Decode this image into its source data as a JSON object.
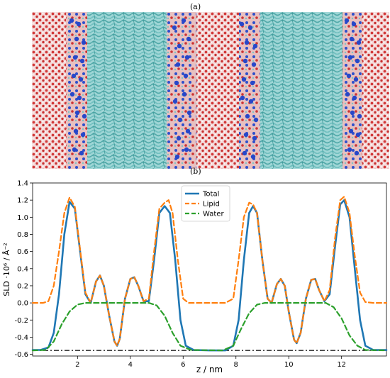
{
  "figure": {
    "panel_a_label": "(a)",
    "panel_b_label": "(b)"
  },
  "simulation_image": {
    "description_icon": "molecular-dynamics-snapshot",
    "colors": {
      "water": "#cc3333",
      "lipid_tails": "#6fc0c0",
      "headgroup": "#3355cc",
      "background": "#ffffff"
    }
  },
  "chart_data": {
    "type": "line",
    "xlabel": "z / nm",
    "ylabel": "SLD ·10⁶ / Å⁻²",
    "xlim": [
      0.3,
      13.7
    ],
    "ylim": [
      -0.62,
      1.4
    ],
    "xticks": [
      2,
      4,
      6,
      8,
      10,
      12
    ],
    "yticks": [
      -0.6,
      -0.4,
      -0.2,
      0.0,
      0.2,
      0.4,
      0.6,
      0.8,
      1.0,
      1.2,
      1.4
    ],
    "ytick_labels": [
      "-0.6",
      "-0.4",
      "-0.2",
      "0.0",
      "0.2",
      "0.4",
      "0.6",
      "0.8",
      "1.0",
      "1.2",
      "1.4"
    ],
    "xtick_labels": [
      "2",
      "4",
      "6",
      "8",
      "10",
      "12"
    ],
    "legend_position": "top-center",
    "reference_line": {
      "y": -0.555,
      "style": "dash-dot",
      "color": "#000000"
    },
    "series": [
      {
        "name": "Total",
        "color": "#1f77b4",
        "style": "solid",
        "points": [
          [
            0.3,
            -0.55
          ],
          [
            0.6,
            -0.55
          ],
          [
            0.9,
            -0.52
          ],
          [
            1.1,
            -0.35
          ],
          [
            1.3,
            0.1
          ],
          [
            1.5,
            0.8
          ],
          [
            1.7,
            1.18
          ],
          [
            1.9,
            1.1
          ],
          [
            2.1,
            0.6
          ],
          [
            2.3,
            0.1
          ],
          [
            2.5,
            0.0
          ],
          [
            2.7,
            0.25
          ],
          [
            2.85,
            0.32
          ],
          [
            3.0,
            0.2
          ],
          [
            3.2,
            -0.15
          ],
          [
            3.4,
            -0.45
          ],
          [
            3.5,
            -0.5
          ],
          [
            3.6,
            -0.42
          ],
          [
            3.8,
            0.05
          ],
          [
            4.0,
            0.28
          ],
          [
            4.15,
            0.3
          ],
          [
            4.3,
            0.2
          ],
          [
            4.5,
            0.02
          ],
          [
            4.7,
            0.02
          ],
          [
            4.9,
            0.5
          ],
          [
            5.1,
            1.05
          ],
          [
            5.3,
            1.13
          ],
          [
            5.5,
            1.05
          ],
          [
            5.7,
            0.5
          ],
          [
            5.9,
            -0.2
          ],
          [
            6.1,
            -0.5
          ],
          [
            6.4,
            -0.55
          ],
          [
            7.0,
            -0.555
          ],
          [
            7.6,
            -0.555
          ],
          [
            7.9,
            -0.5
          ],
          [
            8.1,
            -0.2
          ],
          [
            8.3,
            0.5
          ],
          [
            8.5,
            1.05
          ],
          [
            8.65,
            1.13
          ],
          [
            8.8,
            1.05
          ],
          [
            9.0,
            0.5
          ],
          [
            9.2,
            0.05
          ],
          [
            9.35,
            0.0
          ],
          [
            9.55,
            0.22
          ],
          [
            9.7,
            0.28
          ],
          [
            9.85,
            0.2
          ],
          [
            10.0,
            -0.1
          ],
          [
            10.2,
            -0.43
          ],
          [
            10.3,
            -0.47
          ],
          [
            10.45,
            -0.35
          ],
          [
            10.65,
            0.05
          ],
          [
            10.85,
            0.27
          ],
          [
            11.0,
            0.28
          ],
          [
            11.15,
            0.15
          ],
          [
            11.35,
            0.02
          ],
          [
            11.55,
            0.1
          ],
          [
            11.75,
            0.65
          ],
          [
            11.95,
            1.15
          ],
          [
            12.1,
            1.2
          ],
          [
            12.3,
            1.0
          ],
          [
            12.5,
            0.4
          ],
          [
            12.7,
            -0.2
          ],
          [
            12.9,
            -0.5
          ],
          [
            13.2,
            -0.55
          ],
          [
            13.7,
            -0.55
          ]
        ]
      },
      {
        "name": "Lipid",
        "color": "#ff7f0e",
        "style": "dashed",
        "points": [
          [
            0.3,
            0.0
          ],
          [
            0.7,
            0.0
          ],
          [
            0.9,
            0.02
          ],
          [
            1.1,
            0.2
          ],
          [
            1.3,
            0.6
          ],
          [
            1.5,
            1.05
          ],
          [
            1.7,
            1.23
          ],
          [
            1.9,
            1.12
          ],
          [
            2.1,
            0.62
          ],
          [
            2.3,
            0.12
          ],
          [
            2.5,
            0.0
          ],
          [
            2.7,
            0.25
          ],
          [
            2.85,
            0.32
          ],
          [
            3.0,
            0.2
          ],
          [
            3.2,
            -0.15
          ],
          [
            3.4,
            -0.45
          ],
          [
            3.5,
            -0.5
          ],
          [
            3.6,
            -0.42
          ],
          [
            3.8,
            0.05
          ],
          [
            4.0,
            0.28
          ],
          [
            4.15,
            0.3
          ],
          [
            4.3,
            0.2
          ],
          [
            4.5,
            0.02
          ],
          [
            4.7,
            0.05
          ],
          [
            4.9,
            0.6
          ],
          [
            5.1,
            1.1
          ],
          [
            5.3,
            1.17
          ],
          [
            5.45,
            1.2
          ],
          [
            5.6,
            1.05
          ],
          [
            5.8,
            0.5
          ],
          [
            6.0,
            0.05
          ],
          [
            6.2,
            0.0
          ],
          [
            7.0,
            0.0
          ],
          [
            7.6,
            0.0
          ],
          [
            7.9,
            0.05
          ],
          [
            8.1,
            0.5
          ],
          [
            8.3,
            1.0
          ],
          [
            8.5,
            1.17
          ],
          [
            8.65,
            1.15
          ],
          [
            8.8,
            1.05
          ],
          [
            9.0,
            0.5
          ],
          [
            9.2,
            0.05
          ],
          [
            9.35,
            0.0
          ],
          [
            9.55,
            0.22
          ],
          [
            9.7,
            0.28
          ],
          [
            9.85,
            0.2
          ],
          [
            10.0,
            -0.1
          ],
          [
            10.2,
            -0.43
          ],
          [
            10.3,
            -0.47
          ],
          [
            10.45,
            -0.35
          ],
          [
            10.65,
            0.05
          ],
          [
            10.85,
            0.27
          ],
          [
            11.0,
            0.28
          ],
          [
            11.15,
            0.15
          ],
          [
            11.35,
            0.02
          ],
          [
            11.55,
            0.15
          ],
          [
            11.75,
            0.75
          ],
          [
            11.95,
            1.2
          ],
          [
            12.1,
            1.24
          ],
          [
            12.3,
            1.05
          ],
          [
            12.5,
            0.55
          ],
          [
            12.7,
            0.12
          ],
          [
            12.9,
            0.01
          ],
          [
            13.2,
            0.0
          ],
          [
            13.7,
            0.0
          ]
        ]
      },
      {
        "name": "Water",
        "color": "#2ca02c",
        "style": "dashed",
        "points": [
          [
            0.3,
            -0.555
          ],
          [
            0.8,
            -0.55
          ],
          [
            1.1,
            -0.45
          ],
          [
            1.4,
            -0.25
          ],
          [
            1.7,
            -0.1
          ],
          [
            2.0,
            -0.02
          ],
          [
            2.3,
            0.0
          ],
          [
            4.7,
            0.0
          ],
          [
            5.0,
            -0.03
          ],
          [
            5.3,
            -0.15
          ],
          [
            5.6,
            -0.35
          ],
          [
            5.9,
            -0.5
          ],
          [
            6.3,
            -0.55
          ],
          [
            7.5,
            -0.555
          ],
          [
            7.9,
            -0.5
          ],
          [
            8.2,
            -0.3
          ],
          [
            8.5,
            -0.12
          ],
          [
            8.8,
            -0.02
          ],
          [
            9.1,
            0.0
          ],
          [
            11.4,
            0.0
          ],
          [
            11.7,
            -0.05
          ],
          [
            12.0,
            -0.18
          ],
          [
            12.3,
            -0.38
          ],
          [
            12.6,
            -0.5
          ],
          [
            12.9,
            -0.55
          ],
          [
            13.7,
            -0.555
          ]
        ]
      }
    ]
  }
}
